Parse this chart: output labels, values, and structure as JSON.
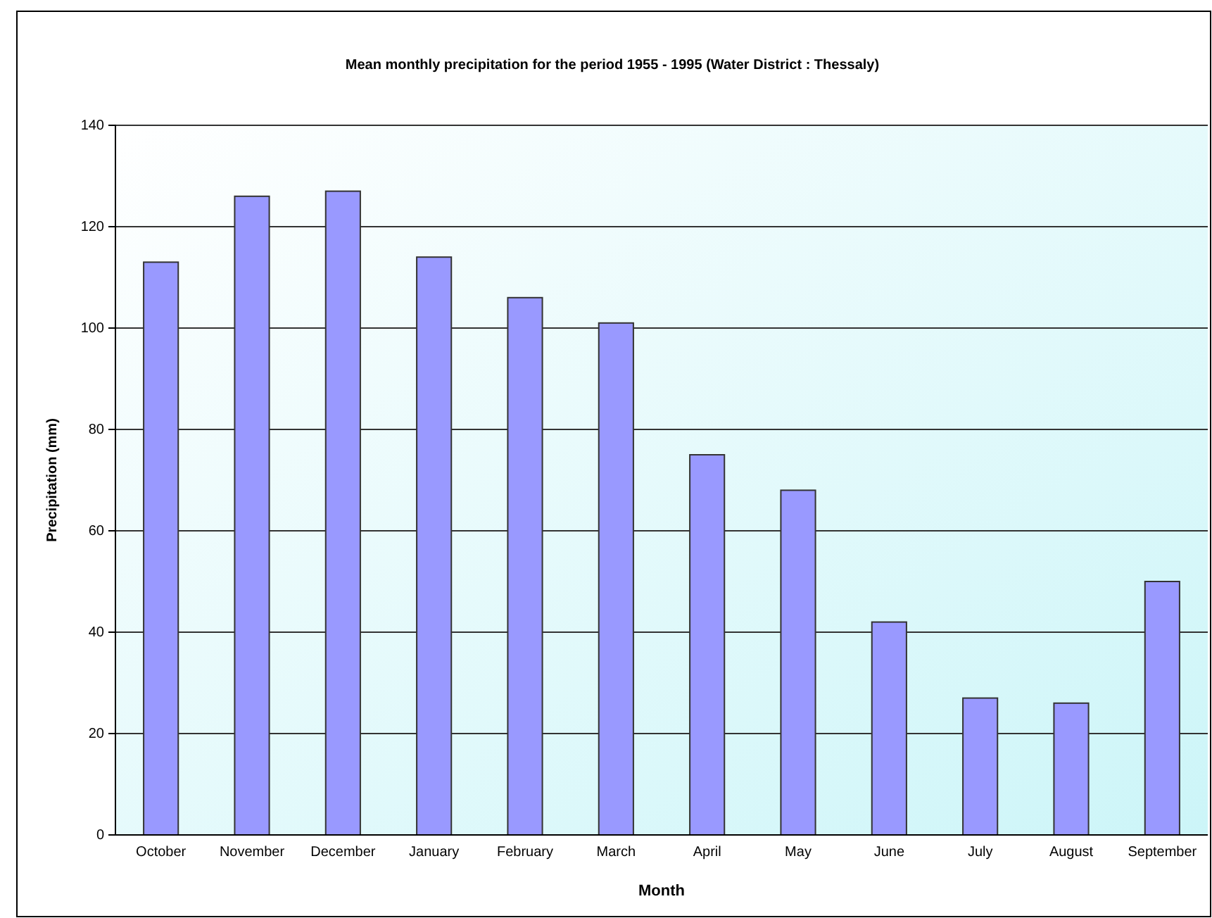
{
  "chart_data": {
    "type": "bar",
    "title": "Mean monthly precipitation for the period 1955 - 1995 (Water District : Thessaly)",
    "xlabel": "Month",
    "ylabel": "Precipitation (mm)",
    "categories": [
      "October",
      "November",
      "December",
      "January",
      "February",
      "March",
      "April",
      "May",
      "June",
      "July",
      "August",
      "September"
    ],
    "values": [
      113,
      126,
      127,
      114,
      106,
      101,
      75,
      68,
      42,
      27,
      26,
      50
    ],
    "color": "#9999ff",
    "ylim": [
      0,
      140
    ],
    "yticks": [
      0,
      20,
      40,
      60,
      80,
      100,
      120,
      140
    ],
    "grid": "y"
  }
}
